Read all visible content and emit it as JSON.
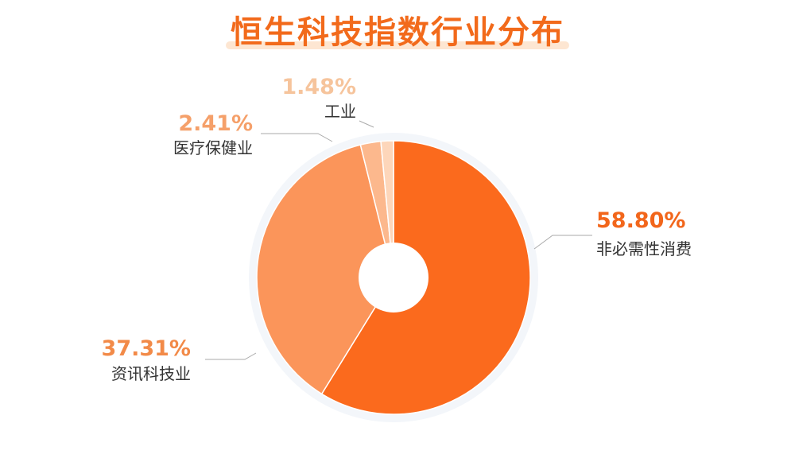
{
  "title": "恒生科技指数行业分布",
  "chart_data": {
    "type": "pie",
    "title": "恒生科技指数行业分布",
    "donut": true,
    "slices": [
      {
        "label": "非必需性消费",
        "value": 58.8,
        "value_label": "58.80%",
        "color": "#fb6a1d",
        "label_color": "#f2661b"
      },
      {
        "label": "资讯科技业",
        "value": 37.31,
        "value_label": "37.31%",
        "color": "#fb955a",
        "label_color": "#f28a48"
      },
      {
        "label": "医疗保健业",
        "value": 2.41,
        "value_label": "2.41%",
        "color": "#fcb88d",
        "label_color": "#f5a06a"
      },
      {
        "label": "工业",
        "value": 1.48,
        "value_label": "1.48%",
        "color": "#fdd6ba",
        "label_color": "#f6c49c"
      }
    ]
  }
}
